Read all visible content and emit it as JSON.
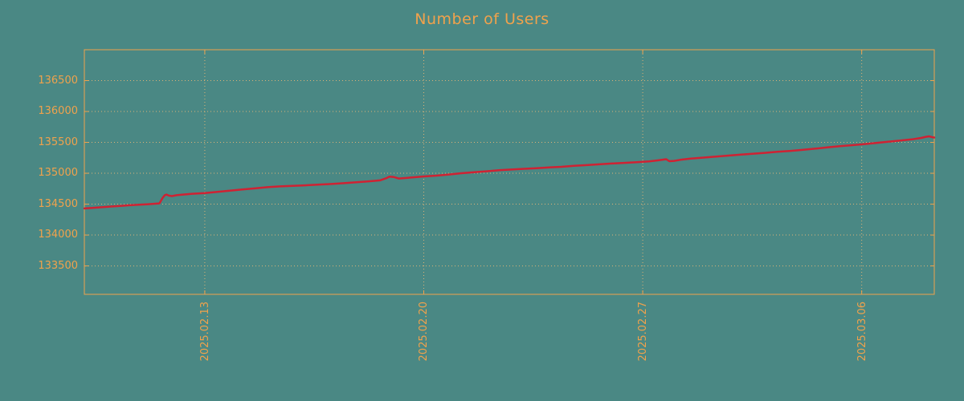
{
  "colors": {
    "background": "#4a8884",
    "text": "#f0a24c",
    "axis_border": "#f0a24c",
    "grid": "#ddb377",
    "line": "#cf2233"
  },
  "chart_data": {
    "type": "line",
    "title": "Number of Users",
    "xlabel": "",
    "ylabel": "",
    "grid": true,
    "legend": "none",
    "x_axis_unit": "days since 2025.02.09 00:00",
    "xlim": [
      0.15,
      27.32
    ],
    "ylim": [
      133040,
      137000
    ],
    "y_ticks": [
      133500,
      134000,
      134500,
      135000,
      135500,
      136000,
      136500
    ],
    "x_ticks": [
      {
        "day": 4,
        "label": "2025.02.13"
      },
      {
        "day": 11,
        "label": "2025.02.20"
      },
      {
        "day": 18,
        "label": "2025.02.27"
      },
      {
        "day": 25,
        "label": "2025.03.06"
      }
    ],
    "series": [
      {
        "name": "Number of Users",
        "points": [
          [
            0.15,
            134430
          ],
          [
            0.4,
            134438
          ],
          [
            0.7,
            134450
          ],
          [
            1.0,
            134462
          ],
          [
            1.3,
            134472
          ],
          [
            1.6,
            134482
          ],
          [
            1.9,
            134492
          ],
          [
            2.2,
            134500
          ],
          [
            2.45,
            134508
          ],
          [
            2.55,
            134512
          ],
          [
            2.65,
            134600
          ],
          [
            2.72,
            134645
          ],
          [
            2.78,
            134655
          ],
          [
            2.85,
            134638
          ],
          [
            2.95,
            134630
          ],
          [
            3.1,
            134645
          ],
          [
            3.3,
            134655
          ],
          [
            3.6,
            134668
          ],
          [
            4.0,
            134680
          ],
          [
            4.4,
            134698
          ],
          [
            4.8,
            134718
          ],
          [
            5.2,
            134738
          ],
          [
            5.6,
            134755
          ],
          [
            6.0,
            134775
          ],
          [
            6.4,
            134788
          ],
          [
            6.8,
            134797
          ],
          [
            7.2,
            134805
          ],
          [
            7.6,
            134815
          ],
          [
            8.0,
            134825
          ],
          [
            8.4,
            134838
          ],
          [
            8.8,
            134852
          ],
          [
            9.2,
            134868
          ],
          [
            9.6,
            134885
          ],
          [
            9.8,
            134920
          ],
          [
            9.9,
            134945
          ],
          [
            10.05,
            134938
          ],
          [
            10.2,
            134915
          ],
          [
            10.4,
            134922
          ],
          [
            10.7,
            134935
          ],
          [
            11.0,
            134948
          ],
          [
            11.4,
            134962
          ],
          [
            11.8,
            134980
          ],
          [
            12.2,
            135000
          ],
          [
            12.6,
            135018
          ],
          [
            13.0,
            135032
          ],
          [
            13.4,
            135048
          ],
          [
            13.8,
            135060
          ],
          [
            14.2,
            135072
          ],
          [
            14.6,
            135082
          ],
          [
            15.0,
            135095
          ],
          [
            15.4,
            135105
          ],
          [
            15.8,
            135120
          ],
          [
            16.2,
            135132
          ],
          [
            16.6,
            135145
          ],
          [
            17.0,
            135158
          ],
          [
            17.4,
            135168
          ],
          [
            17.8,
            135178
          ],
          [
            18.2,
            135192
          ],
          [
            18.5,
            135210
          ],
          [
            18.75,
            135228
          ],
          [
            18.85,
            135195
          ],
          [
            19.0,
            135200
          ],
          [
            19.2,
            135218
          ],
          [
            19.5,
            135235
          ],
          [
            19.9,
            135252
          ],
          [
            20.3,
            135268
          ],
          [
            20.7,
            135285
          ],
          [
            21.1,
            135300
          ],
          [
            21.5,
            135315
          ],
          [
            21.9,
            135330
          ],
          [
            22.3,
            135348
          ],
          [
            22.7,
            135362
          ],
          [
            23.1,
            135378
          ],
          [
            23.5,
            135398
          ],
          [
            23.9,
            135418
          ],
          [
            24.3,
            135438
          ],
          [
            24.7,
            135455
          ],
          [
            25.0,
            135468
          ],
          [
            25.4,
            135488
          ],
          [
            25.8,
            135508
          ],
          [
            26.2,
            135528
          ],
          [
            26.6,
            135548
          ],
          [
            26.9,
            135572
          ],
          [
            27.05,
            135590
          ],
          [
            27.15,
            135598
          ],
          [
            27.25,
            135585
          ],
          [
            27.32,
            135578
          ]
        ]
      }
    ]
  }
}
